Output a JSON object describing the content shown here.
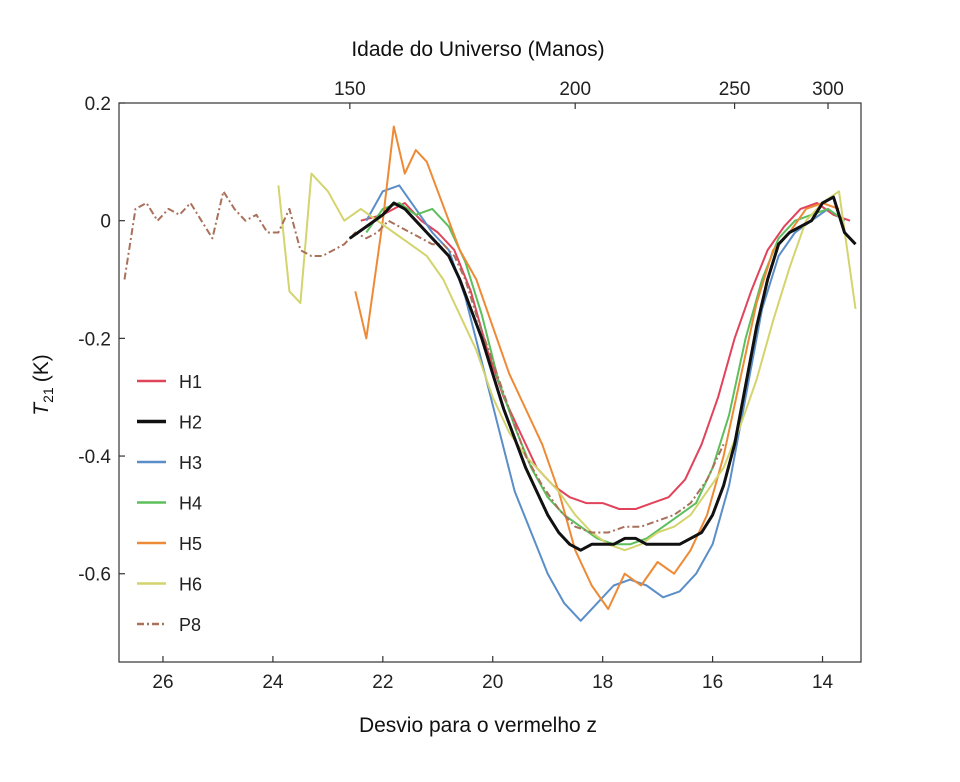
{
  "chart_data": {
    "type": "line",
    "title": "",
    "xlabel": "Desvio para o vermelho z",
    "ylabel": "T",
    "ylabel_sub": "21",
    "ylabel_unit": "(K)",
    "xlim": [
      26.8,
      13.3
    ],
    "ylim": [
      -0.75,
      0.2
    ],
    "x_ticks": [
      26,
      24,
      22,
      20,
      18,
      16,
      14
    ],
    "x_tick_labels": [
      "26",
      "24",
      "22",
      "20",
      "18",
      "16",
      "14"
    ],
    "y_ticks": [
      0.2,
      0,
      -0.2,
      -0.4,
      -0.6
    ],
    "y_tick_labels": [
      "0.2",
      "0",
      "-0.2",
      "-0.4",
      "-0.6"
    ],
    "top_axis": {
      "label": "Idade do Universo (Manos)",
      "ticks": [
        {
          "z": 22.6,
          "label": "150"
        },
        {
          "z": 18.5,
          "label": "200"
        },
        {
          "z": 15.6,
          "label": "250"
        },
        {
          "z": 13.9,
          "label": "300"
        }
      ]
    },
    "legend_position": "left",
    "grid": false,
    "series": [
      {
        "name": "H1",
        "color": "#e0435a",
        "style": "solid",
        "width": 2,
        "x": [
          22.4,
          22.0,
          21.6,
          21.3,
          21.0,
          20.7,
          20.4,
          20.1,
          19.8,
          19.5,
          19.2,
          18.9,
          18.6,
          18.3,
          18.0,
          17.7,
          17.4,
          17.1,
          16.8,
          16.5,
          16.2,
          15.9,
          15.6,
          15.3,
          15.0,
          14.7,
          14.4,
          14.1,
          13.8,
          13.5
        ],
        "y": [
          0.0,
          0.01,
          0.03,
          0.0,
          -0.02,
          -0.05,
          -0.12,
          -0.22,
          -0.3,
          -0.36,
          -0.42,
          -0.45,
          -0.47,
          -0.48,
          -0.48,
          -0.49,
          -0.49,
          -0.48,
          -0.47,
          -0.44,
          -0.38,
          -0.3,
          -0.2,
          -0.12,
          -0.05,
          -0.01,
          0.02,
          0.03,
          0.01,
          0.0
        ]
      },
      {
        "name": "H2",
        "color": "#111111",
        "style": "solid",
        "width": 3,
        "x": [
          22.6,
          22.3,
          22.0,
          21.8,
          21.6,
          21.4,
          21.2,
          21.0,
          20.8,
          20.6,
          20.4,
          20.2,
          20.0,
          19.8,
          19.6,
          19.4,
          19.2,
          19.0,
          18.8,
          18.6,
          18.4,
          18.2,
          18.0,
          17.8,
          17.6,
          17.4,
          17.2,
          17.0,
          16.8,
          16.6,
          16.4,
          16.2,
          16.0,
          15.8,
          15.6,
          15.4,
          15.2,
          15.0,
          14.8,
          14.6,
          14.4,
          14.2,
          14.0,
          13.8,
          13.6,
          13.4
        ],
        "y": [
          -0.03,
          -0.01,
          0.01,
          0.03,
          0.02,
          0.0,
          -0.02,
          -0.04,
          -0.06,
          -0.1,
          -0.15,
          -0.2,
          -0.26,
          -0.32,
          -0.37,
          -0.42,
          -0.46,
          -0.5,
          -0.53,
          -0.55,
          -0.56,
          -0.55,
          -0.55,
          -0.55,
          -0.54,
          -0.54,
          -0.55,
          -0.55,
          -0.55,
          -0.55,
          -0.54,
          -0.53,
          -0.5,
          -0.45,
          -0.38,
          -0.28,
          -0.18,
          -0.1,
          -0.04,
          -0.02,
          -0.01,
          0.0,
          0.03,
          0.04,
          -0.02,
          -0.04
        ]
      },
      {
        "name": "H3",
        "color": "#5a8ec8",
        "style": "solid",
        "width": 2,
        "x": [
          22.3,
          22.0,
          21.7,
          21.4,
          21.1,
          20.8,
          20.5,
          20.2,
          19.9,
          19.6,
          19.3,
          19.0,
          18.7,
          18.4,
          18.1,
          17.8,
          17.5,
          17.2,
          16.9,
          16.6,
          16.3,
          16.0,
          15.7,
          15.4,
          15.1,
          14.8,
          14.5,
          14.2,
          13.9,
          13.6
        ],
        "y": [
          0.0,
          0.05,
          0.06,
          0.02,
          -0.02,
          -0.05,
          -0.13,
          -0.24,
          -0.35,
          -0.46,
          -0.53,
          -0.6,
          -0.65,
          -0.68,
          -0.65,
          -0.62,
          -0.61,
          -0.62,
          -0.64,
          -0.63,
          -0.6,
          -0.55,
          -0.45,
          -0.3,
          -0.15,
          -0.06,
          -0.02,
          0.0,
          0.02,
          0.0
        ]
      },
      {
        "name": "H4",
        "color": "#5cbf5c",
        "style": "solid",
        "width": 2,
        "x": [
          22.3,
          22.0,
          21.7,
          21.4,
          21.1,
          20.8,
          20.5,
          20.2,
          19.9,
          19.6,
          19.3,
          19.0,
          18.7,
          18.4,
          18.1,
          17.8,
          17.5,
          17.2,
          16.9,
          16.6,
          16.3,
          16.0,
          15.7,
          15.4,
          15.1,
          14.8,
          14.5,
          14.2,
          13.9,
          13.6
        ],
        "y": [
          -0.02,
          0.02,
          0.03,
          0.01,
          0.02,
          -0.01,
          -0.07,
          -0.16,
          -0.27,
          -0.35,
          -0.42,
          -0.47,
          -0.5,
          -0.52,
          -0.54,
          -0.55,
          -0.55,
          -0.54,
          -0.52,
          -0.5,
          -0.48,
          -0.42,
          -0.33,
          -0.2,
          -0.1,
          -0.03,
          0.0,
          0.01,
          0.02,
          0.0
        ]
      },
      {
        "name": "H5",
        "color": "#ee8a35",
        "style": "solid",
        "width": 2,
        "x": [
          22.5,
          22.3,
          22.0,
          21.8,
          21.6,
          21.4,
          21.2,
          21.0,
          20.8,
          20.6,
          20.3,
          20.0,
          19.7,
          19.4,
          19.1,
          18.8,
          18.5,
          18.2,
          17.9,
          17.6,
          17.3,
          17.0,
          16.7,
          16.4,
          16.1,
          15.8,
          15.5,
          15.2,
          14.9,
          14.6,
          14.3,
          14.0,
          13.7
        ],
        "y": [
          -0.12,
          -0.2,
          0.0,
          0.16,
          0.08,
          0.12,
          0.1,
          0.05,
          0.0,
          -0.05,
          -0.1,
          -0.18,
          -0.26,
          -0.32,
          -0.38,
          -0.46,
          -0.56,
          -0.62,
          -0.66,
          -0.6,
          -0.62,
          -0.58,
          -0.6,
          -0.56,
          -0.5,
          -0.4,
          -0.27,
          -0.14,
          -0.05,
          -0.02,
          0.02,
          0.03,
          0.02
        ]
      },
      {
        "name": "H6",
        "color": "#d4d46e",
        "style": "solid",
        "width": 2,
        "x": [
          23.9,
          23.7,
          23.5,
          23.3,
          23.0,
          22.7,
          22.4,
          22.1,
          21.8,
          21.5,
          21.2,
          20.9,
          20.6,
          20.3,
          20.0,
          19.7,
          19.4,
          19.1,
          18.8,
          18.5,
          18.2,
          17.9,
          17.6,
          17.3,
          17.0,
          16.7,
          16.4,
          16.1,
          15.8,
          15.5,
          15.2,
          14.9,
          14.6,
          14.3,
          14.0,
          13.7,
          13.4
        ],
        "y": [
          0.06,
          -0.12,
          -0.14,
          0.08,
          0.05,
          0.0,
          0.02,
          0.0,
          -0.02,
          -0.04,
          -0.06,
          -0.1,
          -0.16,
          -0.22,
          -0.3,
          -0.36,
          -0.4,
          -0.43,
          -0.46,
          -0.5,
          -0.53,
          -0.55,
          -0.56,
          -0.55,
          -0.53,
          -0.52,
          -0.5,
          -0.46,
          -0.42,
          -0.35,
          -0.27,
          -0.17,
          -0.08,
          0.0,
          0.03,
          0.05,
          -0.15
        ]
      },
      {
        "name": "P8",
        "color": "#a9705a",
        "style": "dashdot",
        "width": 2,
        "x": [
          26.7,
          26.5,
          26.3,
          26.1,
          25.9,
          25.7,
          25.5,
          25.3,
          25.1,
          24.9,
          24.7,
          24.5,
          24.3,
          24.1,
          23.9,
          23.7,
          23.5,
          23.3,
          23.1,
          22.9,
          22.7,
          22.5,
          22.3,
          22.1,
          21.9,
          21.7,
          21.5,
          21.3,
          21.1,
          20.9,
          20.7,
          20.5,
          20.3,
          20.0,
          19.7,
          19.4,
          19.1,
          18.8,
          18.5,
          18.2,
          17.9,
          17.6,
          17.3,
          17.0,
          16.7,
          16.4,
          16.1,
          15.8
        ],
        "y": [
          -0.1,
          0.02,
          0.03,
          0.0,
          0.02,
          0.01,
          0.03,
          0.0,
          -0.03,
          0.05,
          0.02,
          0.0,
          0.01,
          -0.02,
          -0.02,
          0.02,
          -0.05,
          -0.06,
          -0.06,
          -0.05,
          -0.04,
          -0.02,
          -0.03,
          -0.02,
          0.0,
          -0.01,
          -0.02,
          -0.03,
          -0.04,
          -0.04,
          -0.06,
          -0.1,
          -0.16,
          -0.24,
          -0.32,
          -0.4,
          -0.45,
          -0.49,
          -0.52,
          -0.53,
          -0.53,
          -0.52,
          -0.52,
          -0.51,
          -0.5,
          -0.48,
          -0.44,
          -0.38
        ]
      }
    ]
  }
}
